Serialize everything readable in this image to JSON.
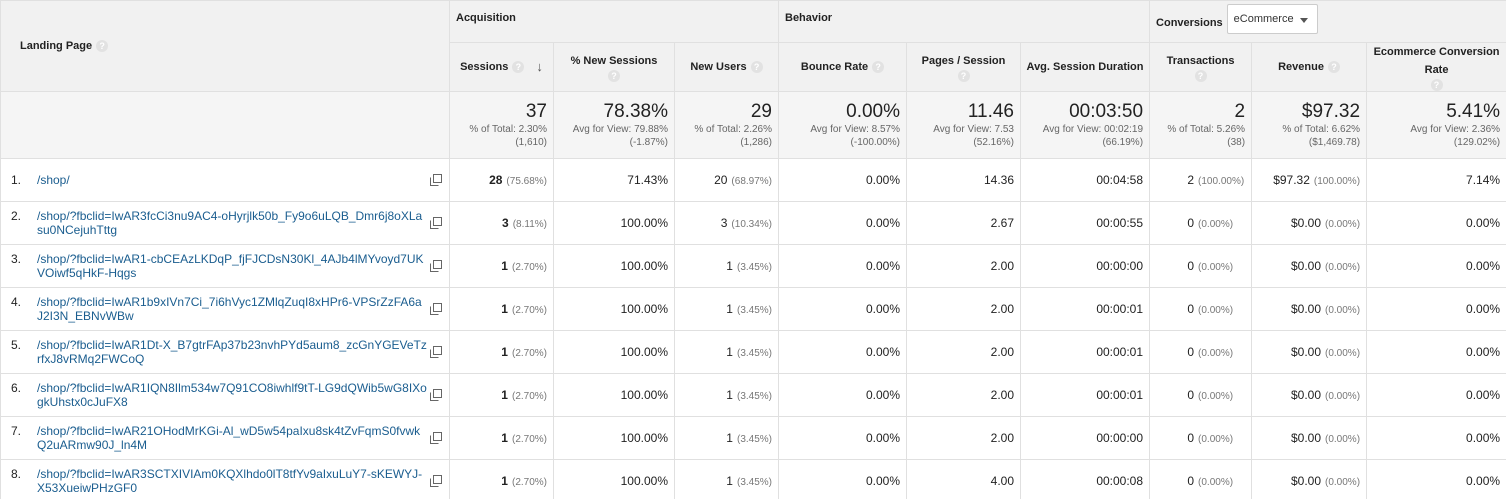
{
  "header": {
    "landing_page": "Landing Page",
    "acquisition": "Acquisition",
    "behavior": "Behavior",
    "conversions": "Conversions",
    "conversion_select": "eCommerce",
    "help_glyph": "?",
    "sort_glyph": "↓"
  },
  "columns": {
    "sessions": "Sessions",
    "new_sessions": "% New Sessions",
    "new_users": "New Users",
    "bounce_rate": "Bounce Rate",
    "pages_session": "Pages / Session",
    "avg_duration": "Avg. Session Duration",
    "transactions": "Transactions",
    "revenue": "Revenue",
    "ecom_rate": "Ecommerce Conversion Rate"
  },
  "totals": {
    "sessions": {
      "value": "37",
      "line1": "% of Total: 2.30%",
      "line2": "(1,610)"
    },
    "new_sessions": {
      "value": "78.38%",
      "line1": "Avg for View: 79.88%",
      "line2": "(-1.87%)"
    },
    "new_users": {
      "value": "29",
      "line1": "% of Total: 2.26%",
      "line2": "(1,286)"
    },
    "bounce_rate": {
      "value": "0.00%",
      "line1": "Avg for View: 8.57%",
      "line2": "(-100.00%)"
    },
    "pages_session": {
      "value": "11.46",
      "line1": "Avg for View: 7.53",
      "line2": "(52.16%)"
    },
    "avg_duration": {
      "value": "00:03:50",
      "line1": "Avg for View: 00:02:19",
      "line2": "(66.19%)"
    },
    "transactions": {
      "value": "2",
      "line1": "% of Total: 5.26%",
      "line2": "(38)"
    },
    "revenue": {
      "value": "$97.32",
      "line1": "% of Total: 6.62%",
      "line2": "($1,469.78)"
    },
    "ecom_rate": {
      "value": "5.41%",
      "line1": "Avg for View: 2.36%",
      "line2": "(129.02%)"
    }
  },
  "rows": [
    {
      "idx": "1.",
      "page": "/shop/",
      "sessions": "28",
      "sessions_pct": "(75.68%)",
      "new_sessions": "71.43%",
      "new_users": "20",
      "new_users_pct": "(68.97%)",
      "bounce": "0.00%",
      "pages": "14.36",
      "duration": "00:04:58",
      "transactions": "2",
      "transactions_pct": "(100.00%)",
      "revenue": "$97.32",
      "revenue_pct": "(100.00%)",
      "ecom": "7.14%"
    },
    {
      "idx": "2.",
      "page": "/shop/?fbclid=IwAR3fcCi3nu9AC4-oHyrjlk50b_Fy9o6uLQB_Dmr6j8oXLasu0NCejuhTttg",
      "sessions": "3",
      "sessions_pct": "(8.11%)",
      "new_sessions": "100.00%",
      "new_users": "3",
      "new_users_pct": "(10.34%)",
      "bounce": "0.00%",
      "pages": "2.67",
      "duration": "00:00:55",
      "transactions": "0",
      "transactions_pct": "(0.00%)",
      "revenue": "$0.00",
      "revenue_pct": "(0.00%)",
      "ecom": "0.00%"
    },
    {
      "idx": "3.",
      "page": "/shop/?fbclid=IwAR1-cbCEAzLKDqP_fjFJCDsN30Kl_4AJb4lMYvoyd7UKVOiwf5qHkF-Hqgs",
      "sessions": "1",
      "sessions_pct": "(2.70%)",
      "new_sessions": "100.00%",
      "new_users": "1",
      "new_users_pct": "(3.45%)",
      "bounce": "0.00%",
      "pages": "2.00",
      "duration": "00:00:00",
      "transactions": "0",
      "transactions_pct": "(0.00%)",
      "revenue": "$0.00",
      "revenue_pct": "(0.00%)",
      "ecom": "0.00%"
    },
    {
      "idx": "4.",
      "page": "/shop/?fbclid=IwAR1b9xIVn7Ci_7i6hVyc1ZMlqZuqI8xHPr6-VPSrZzFA6aJ2I3N_EBNvWBw",
      "sessions": "1",
      "sessions_pct": "(2.70%)",
      "new_sessions": "100.00%",
      "new_users": "1",
      "new_users_pct": "(3.45%)",
      "bounce": "0.00%",
      "pages": "2.00",
      "duration": "00:00:01",
      "transactions": "0",
      "transactions_pct": "(0.00%)",
      "revenue": "$0.00",
      "revenue_pct": "(0.00%)",
      "ecom": "0.00%"
    },
    {
      "idx": "5.",
      "page": "/shop/?fbclid=IwAR1Dt-X_B7gtrFAp37b23nvhPYd5aum8_zcGnYGEVeTzrfxJ8vRMq2FWCoQ",
      "sessions": "1",
      "sessions_pct": "(2.70%)",
      "new_sessions": "100.00%",
      "new_users": "1",
      "new_users_pct": "(3.45%)",
      "bounce": "0.00%",
      "pages": "2.00",
      "duration": "00:00:01",
      "transactions": "0",
      "transactions_pct": "(0.00%)",
      "revenue": "$0.00",
      "revenue_pct": "(0.00%)",
      "ecom": "0.00%"
    },
    {
      "idx": "6.",
      "page": "/shop/?fbclid=IwAR1IQN8Ilm534w7Q91CO8iwhlf9tT-LG9dQWib5wG8IXogkUhstx0cJuFX8",
      "sessions": "1",
      "sessions_pct": "(2.70%)",
      "new_sessions": "100.00%",
      "new_users": "1",
      "new_users_pct": "(3.45%)",
      "bounce": "0.00%",
      "pages": "2.00",
      "duration": "00:00:01",
      "transactions": "0",
      "transactions_pct": "(0.00%)",
      "revenue": "$0.00",
      "revenue_pct": "(0.00%)",
      "ecom": "0.00%"
    },
    {
      "idx": "7.",
      "page": "/shop/?fbclid=IwAR21OHodMrKGi-Al_wD5w54paIxu8sk4tZvFqmS0fvwkQ2uARmw90J_ln4M",
      "sessions": "1",
      "sessions_pct": "(2.70%)",
      "new_sessions": "100.00%",
      "new_users": "1",
      "new_users_pct": "(3.45%)",
      "bounce": "0.00%",
      "pages": "2.00",
      "duration": "00:00:00",
      "transactions": "0",
      "transactions_pct": "(0.00%)",
      "revenue": "$0.00",
      "revenue_pct": "(0.00%)",
      "ecom": "0.00%"
    },
    {
      "idx": "8.",
      "page": "/shop/?fbclid=IwAR3SCTXIVIAm0KQXlhdo0lT8tfYv9aIxuLuY7-sKEWYJ-X53XueiwPHzGF0",
      "sessions": "1",
      "sessions_pct": "(2.70%)",
      "new_sessions": "100.00%",
      "new_users": "1",
      "new_users_pct": "(3.45%)",
      "bounce": "0.00%",
      "pages": "4.00",
      "duration": "00:00:08",
      "transactions": "0",
      "transactions_pct": "(0.00%)",
      "revenue": "$0.00",
      "revenue_pct": "(0.00%)",
      "ecom": "0.00%"
    }
  ]
}
